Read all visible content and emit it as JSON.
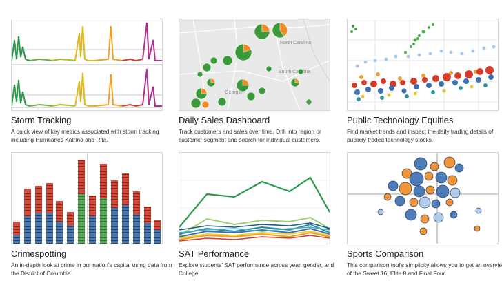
{
  "gallery": {
    "items": [
      {
        "title": "Storm Tracking",
        "description": "A quick view of key metrics associated with storm tracking including Hurricanes Katrina and Rita."
      },
      {
        "title": "Daily Sales Dashboard",
        "description": "Track customers and sales over time. Drill into region or customer segment and search for individual customers."
      },
      {
        "title": "Public Technology Equities",
        "description": "Find market trends and inspect the daily trading details of publicly traded technology stocks."
      },
      {
        "title": "Crimespotting",
        "description": "An in-depth look at crime in our nation's capital using data from the District of Columbia."
      },
      {
        "title": "SAT Performance",
        "description": "Explore students' SAT performance across year, gender, and College."
      },
      {
        "title": "Sports Comparison",
        "description": "This comparison tool's simplicity allows you to get an overview of the Sweet 16, Elite 8 and Final Four."
      }
    ],
    "map_labels": [
      "North Carolina",
      "South Carolina",
      "Georgia"
    ],
    "colors": {
      "green": "#3a9a3a",
      "orange": "#f08a24",
      "red": "#d83a2a",
      "blue": "#3a6fb0",
      "yellow": "#e8c020",
      "purple": "#8a3aa0",
      "magenta": "#c0309a"
    }
  }
}
